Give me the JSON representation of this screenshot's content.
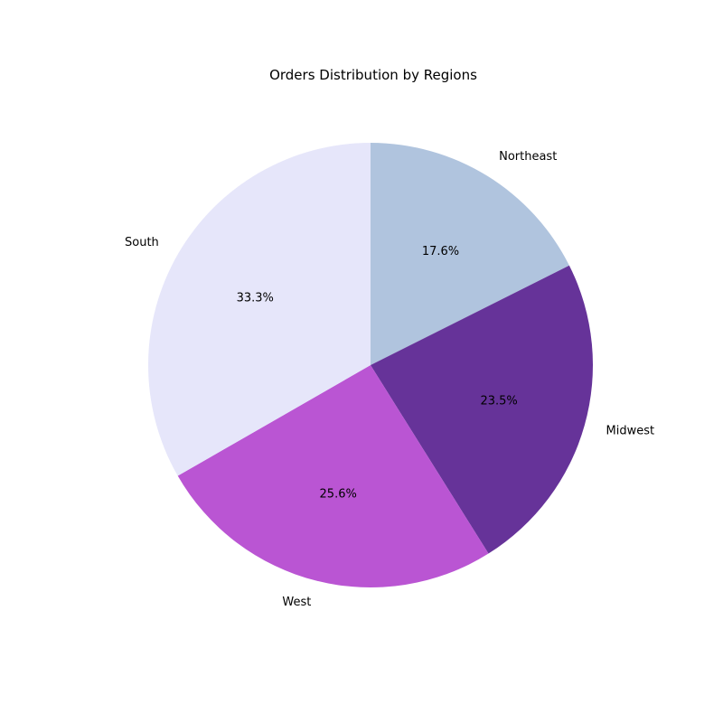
{
  "chart_data": {
    "type": "pie",
    "title": "Orders Distribution by Regions",
    "start_angle_deg": 90,
    "direction": "clockwise",
    "slices": [
      {
        "label": "Northeast",
        "percent": 17.6,
        "percent_label": "17.6%",
        "color": "#B0C4DE"
      },
      {
        "label": "Midwest",
        "percent": 23.5,
        "percent_label": "23.5%",
        "color": "#663399"
      },
      {
        "label": "West",
        "percent": 25.6,
        "percent_label": "25.6%",
        "color": "#BA55D3"
      },
      {
        "label": "South",
        "percent": 33.3,
        "percent_label": "33.3%",
        "color": "#E6E6FA"
      }
    ]
  }
}
